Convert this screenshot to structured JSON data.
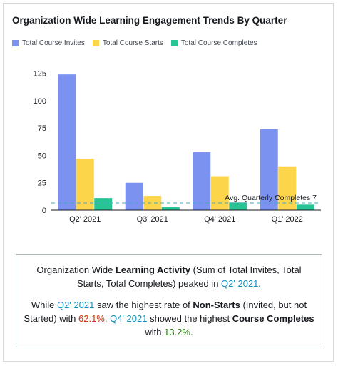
{
  "colors": {
    "invites": "#7b92f0",
    "starts": "#fdd54a",
    "completes": "#27c495",
    "avg_line": "#4aa8c4",
    "axis": "#16191f"
  },
  "chart_data": {
    "type": "bar",
    "title": "Organization Wide Learning Engagement Trends By Quarter",
    "categories": [
      "Q2' 2021",
      "Q3' 2021",
      "Q4' 2021",
      "Q1' 2022"
    ],
    "series": [
      {
        "name": "Total Course Invites",
        "values": [
          124,
          25,
          53,
          74
        ]
      },
      {
        "name": "Total Course Starts",
        "values": [
          47,
          13,
          31,
          40
        ]
      },
      {
        "name": "Total Course Completes",
        "values": [
          11,
          3,
          7,
          5
        ]
      }
    ],
    "yticks": [
      0,
      25,
      50,
      75,
      100,
      125
    ],
    "ylim": [
      0,
      130
    ],
    "xlabel": "",
    "ylabel": "",
    "legend": "top-left",
    "grid": false,
    "reference_line": {
      "label": "Avg. Quarterly Completes 7",
      "value": 6.5
    }
  },
  "summary": {
    "p1": {
      "a": "Organization Wide ",
      "b": "Learning Activity",
      "c": " (Sum of Total Invites, Total Starts, Total Completes) peaked in ",
      "d": "Q2' 2021",
      "e": "."
    },
    "p2": {
      "a": "While ",
      "b": "Q2' 2021",
      "c": " saw the highest rate of ",
      "d": "Non-Starts",
      "e": " (Invited, but not Started) with ",
      "f": "62.1%",
      "g": ", ",
      "h": "Q4' 2021",
      "i": " showed the highest ",
      "j": "Course Completes",
      "k": " with ",
      "l": "13.2%",
      "m": "."
    }
  }
}
